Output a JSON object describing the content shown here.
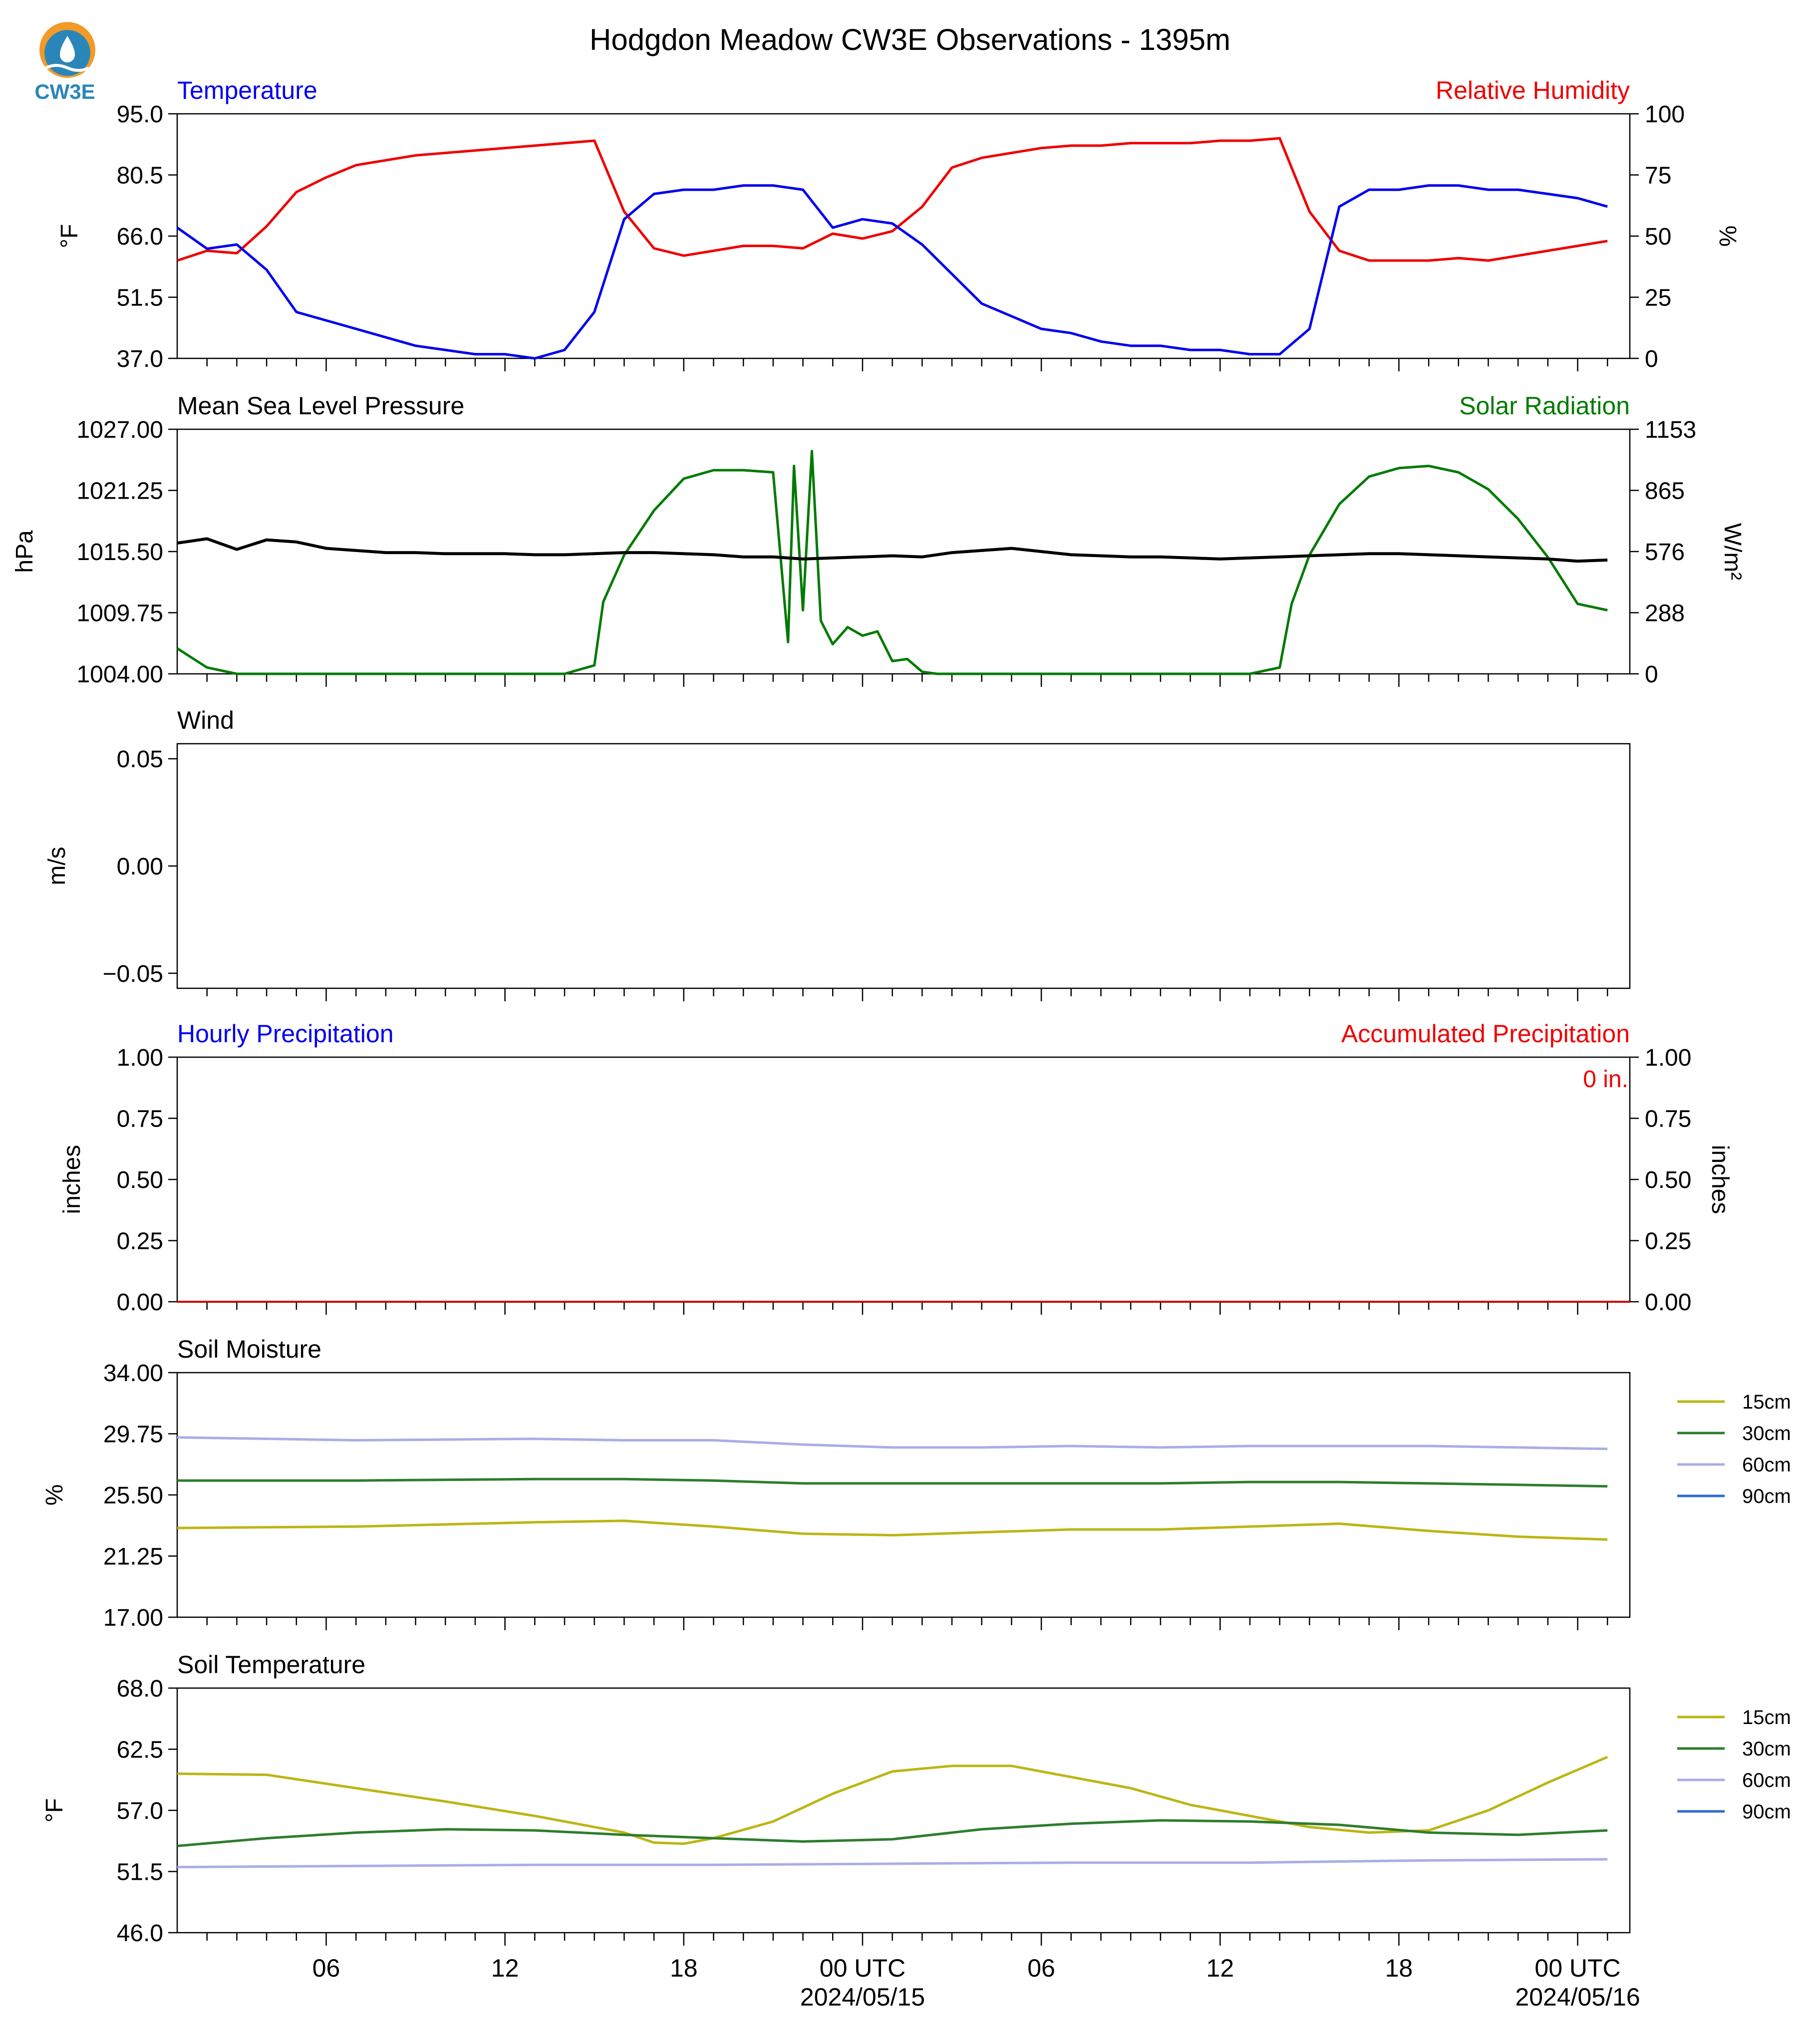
{
  "title": "Hodgdon Meadow CW3E Observations - 1395m",
  "logo": {
    "text": "CW3E",
    "icon": "cw3e-logo-icon"
  },
  "colors": {
    "blue": "#0000ee",
    "red": "#ee0000",
    "green": "#007a00",
    "black": "#000000",
    "s15": "#bdb514",
    "s30": "#2e7d2e",
    "s60": "#a9aee6",
    "s90": "#2d6bd6"
  },
  "x_axis": {
    "tick_labels": [
      "06",
      "12",
      "18",
      "00 UTC",
      "06",
      "12",
      "18",
      "00 UTC"
    ],
    "date_labels": [
      "2024/05/15",
      "2024/05/16"
    ]
  },
  "panels": {
    "temp": {
      "left_title": "Temperature",
      "right_title": "Relative Humidity",
      "ylabel_left": "°F",
      "ylabel_right": "%",
      "yticks_left": [
        "95.0",
        "80.5",
        "66.0",
        "51.5",
        "37.0"
      ],
      "yticks_right": [
        "100",
        "75",
        "50",
        "25",
        "0"
      ]
    },
    "pres": {
      "left_title": "Mean Sea Level Pressure",
      "right_title": "Solar Radiation",
      "ylabel_left": "hPa",
      "ylabel_right": "W/m²",
      "yticks_left": [
        "1027.00",
        "1021.25",
        "1015.50",
        "1009.75",
        "1004.00"
      ],
      "yticks_right": [
        "1153",
        "865",
        "576",
        "288",
        "0"
      ]
    },
    "wind": {
      "left_title": "Wind",
      "ylabel_left": "m/s",
      "yticks_left": [
        "0.05",
        "0.00",
        "−0.05"
      ]
    },
    "precip": {
      "left_title": "Hourly Precipitation",
      "right_title": "Accumulated Precipitation",
      "ylabel_left": "inches",
      "ylabel_right": "inches",
      "yticks_left": [
        "1.00",
        "0.75",
        "0.50",
        "0.25",
        "0.00"
      ],
      "yticks_right": [
        "1.00",
        "0.75",
        "0.50",
        "0.25",
        "0.00"
      ],
      "accum_label": "0 in."
    },
    "soilm": {
      "left_title": "Soil Moisture",
      "ylabel_left": "%",
      "yticks_left": [
        "34.00",
        "29.75",
        "25.50",
        "21.25",
        "17.00"
      ],
      "legend": [
        "15cm",
        "30cm",
        "60cm",
        "90cm"
      ]
    },
    "soilt": {
      "left_title": "Soil Temperature",
      "ylabel_left": "°F",
      "yticks_left": [
        "68.0",
        "62.5",
        "57.0",
        "51.5",
        "46.0"
      ],
      "legend": [
        "15cm",
        "30cm",
        "60cm",
        "90cm"
      ]
    }
  },
  "chart_data": [
    {
      "type": "line",
      "panel": "temp",
      "title": "Temperature / Relative Humidity",
      "x_unit": "hours since 2024/05/14 01 UTC",
      "ylim_left": [
        37,
        95
      ],
      "ylim_right": [
        0,
        100
      ],
      "series": [
        {
          "name": "Temperature",
          "axis": "left",
          "color": "#0000ee",
          "x": [
            0,
            1,
            2,
            3,
            4,
            5,
            6,
            7,
            8,
            9,
            10,
            11,
            12,
            13,
            14,
            15,
            16,
            17,
            18,
            19,
            20,
            21,
            22,
            23,
            24,
            25,
            26,
            27,
            28,
            29,
            30,
            31,
            32,
            33,
            34,
            35,
            36,
            37,
            38,
            39,
            40,
            41,
            42,
            43,
            44,
            45,
            46,
            47,
            48
          ],
          "y": [
            68,
            63,
            64,
            58,
            48,
            46,
            44,
            42,
            40,
            39,
            38,
            38,
            37,
            39,
            48,
            70,
            76,
            77,
            77,
            78,
            78,
            77,
            68,
            70,
            69,
            64,
            57,
            50,
            47,
            44,
            43,
            41,
            40,
            40,
            39,
            39,
            38,
            38,
            44,
            73,
            77,
            77,
            78,
            78,
            77,
            77,
            76,
            75,
            73
          ]
        },
        {
          "name": "Relative Humidity",
          "axis": "right",
          "color": "#ee0000",
          "x": [
            0,
            1,
            2,
            3,
            4,
            5,
            6,
            7,
            8,
            9,
            10,
            11,
            12,
            13,
            14,
            15,
            16,
            17,
            18,
            19,
            20,
            21,
            22,
            23,
            24,
            25,
            26,
            27,
            28,
            29,
            30,
            31,
            32,
            33,
            34,
            35,
            36,
            37,
            38,
            39,
            40,
            41,
            42,
            43,
            44,
            45,
            46,
            47,
            48
          ],
          "y": [
            40,
            44,
            43,
            54,
            68,
            74,
            79,
            81,
            83,
            84,
            85,
            86,
            87,
            88,
            89,
            60,
            45,
            42,
            44,
            46,
            46,
            45,
            51,
            49,
            52,
            62,
            78,
            82,
            84,
            86,
            87,
            87,
            88,
            88,
            88,
            89,
            89,
            90,
            60,
            44,
            40,
            40,
            40,
            41,
            40,
            42,
            44,
            46,
            48
          ]
        }
      ]
    },
    {
      "type": "line",
      "panel": "pres",
      "title": "Mean Sea Level Pressure / Solar Radiation",
      "ylim_left": [
        1004,
        1027
      ],
      "ylim_right": [
        0,
        1153
      ],
      "series": [
        {
          "name": "Mean Sea Level Pressure",
          "axis": "left",
          "color": "#000000",
          "x": [
            0,
            1,
            2,
            3,
            4,
            5,
            6,
            7,
            8,
            9,
            10,
            11,
            12,
            13,
            14,
            15,
            16,
            17,
            18,
            19,
            20,
            21,
            22,
            23,
            24,
            25,
            26,
            27,
            28,
            29,
            30,
            31,
            32,
            33,
            34,
            35,
            36,
            37,
            38,
            39,
            40,
            41,
            42,
            43,
            44,
            45,
            46,
            47,
            48
          ],
          "y": [
            1016.3,
            1016.7,
            1015.7,
            1016.6,
            1016.4,
            1015.8,
            1015.6,
            1015.4,
            1015.4,
            1015.3,
            1015.3,
            1015.3,
            1015.2,
            1015.2,
            1015.3,
            1015.4,
            1015.4,
            1015.3,
            1015.2,
            1015.0,
            1015.0,
            1014.8,
            1014.9,
            1015.0,
            1015.1,
            1015.0,
            1015.4,
            1015.6,
            1015.8,
            1015.5,
            1015.2,
            1015.1,
            1015.0,
            1015.0,
            1014.9,
            1014.8,
            1014.9,
            1015.0,
            1015.1,
            1015.2,
            1015.3,
            1015.3,
            1015.2,
            1015.1,
            1015.0,
            1014.9,
            1014.8,
            1014.6,
            1014.7
          ]
        },
        {
          "name": "Solar Radiation",
          "axis": "right",
          "color": "#007a00",
          "x": [
            0,
            1,
            2,
            13,
            14,
            14.3,
            15,
            16,
            17,
            18,
            19,
            20,
            20.5,
            20.7,
            21,
            21.3,
            21.6,
            22,
            22.5,
            23,
            23.5,
            24,
            24.5,
            25,
            25.5,
            26,
            27,
            36,
            37,
            37.4,
            38,
            39,
            40,
            41,
            42,
            43,
            44,
            45,
            46,
            47,
            48
          ],
          "y": [
            120,
            30,
            0,
            0,
            40,
            340,
            560,
            770,
            920,
            960,
            960,
            950,
            150,
            980,
            300,
            1050,
            250,
            140,
            220,
            180,
            200,
            60,
            70,
            10,
            0,
            0,
            0,
            0,
            30,
            330,
            560,
            800,
            930,
            970,
            980,
            950,
            870,
            730,
            550,
            330,
            300
          ]
        }
      ]
    },
    {
      "type": "line",
      "panel": "wind",
      "title": "Wind",
      "ylim": [
        -0.057,
        0.057
      ],
      "series": []
    },
    {
      "type": "bar",
      "panel": "precip",
      "title": "Hourly Precipitation / Accumulated Precipitation",
      "ylim": [
        0,
        1
      ],
      "accumulated_total": 0,
      "series": [
        {
          "name": "Hourly Precipitation",
          "values": [
            0
          ]
        },
        {
          "name": "Accumulated Precipitation",
          "values": [
            0
          ]
        }
      ]
    },
    {
      "type": "line",
      "panel": "soilm",
      "title": "Soil Moisture",
      "ylim": [
        17,
        34
      ],
      "series": [
        {
          "name": "15cm",
          "color": "#bdb514",
          "x": [
            0,
            6,
            12,
            15,
            18,
            21,
            24,
            27,
            30,
            33,
            36,
            39,
            42,
            45,
            48
          ],
          "y": [
            23.2,
            23.3,
            23.6,
            23.7,
            23.3,
            22.8,
            22.7,
            22.9,
            23.1,
            23.1,
            23.3,
            23.5,
            23.0,
            22.6,
            22.4
          ]
        },
        {
          "name": "30cm",
          "color": "#2e7d2e",
          "x": [
            0,
            6,
            12,
            15,
            18,
            21,
            24,
            27,
            30,
            33,
            36,
            39,
            42,
            45,
            48
          ],
          "y": [
            26.5,
            26.5,
            26.6,
            26.6,
            26.5,
            26.3,
            26.3,
            26.3,
            26.3,
            26.3,
            26.4,
            26.4,
            26.3,
            26.2,
            26.1
          ]
        },
        {
          "name": "60cm",
          "color": "#a9aee6",
          "x": [
            0,
            6,
            12,
            15,
            18,
            21,
            24,
            27,
            30,
            33,
            36,
            39,
            42,
            45,
            48
          ],
          "y": [
            29.5,
            29.3,
            29.4,
            29.3,
            29.3,
            29.0,
            28.8,
            28.8,
            28.9,
            28.8,
            28.9,
            28.9,
            28.9,
            28.8,
            28.7
          ]
        },
        {
          "name": "90cm",
          "color": "#2d6bd6",
          "x": [],
          "y": []
        }
      ]
    },
    {
      "type": "line",
      "panel": "soilt",
      "title": "Soil Temperature",
      "ylim": [
        46,
        68
      ],
      "series": [
        {
          "name": "15cm",
          "color": "#bdb514",
          "x": [
            0,
            3,
            6,
            9,
            12,
            15,
            16,
            17,
            18,
            20,
            22,
            24,
            26,
            28,
            30,
            32,
            34,
            36,
            38,
            40,
            42,
            44,
            46,
            48
          ],
          "y": [
            60.3,
            60.2,
            59.0,
            57.8,
            56.5,
            55.0,
            54.1,
            54.0,
            54.5,
            56.0,
            58.5,
            60.5,
            61.0,
            61.0,
            60.0,
            59.0,
            57.5,
            56.5,
            55.5,
            55.0,
            55.2,
            57.0,
            59.5,
            61.8
          ]
        },
        {
          "name": "30cm",
          "color": "#2e7d2e",
          "x": [
            0,
            3,
            6,
            9,
            12,
            15,
            18,
            21,
            24,
            27,
            30,
            33,
            36,
            39,
            42,
            45,
            48
          ],
          "y": [
            53.8,
            54.5,
            55.0,
            55.3,
            55.2,
            54.8,
            54.5,
            54.2,
            54.4,
            55.3,
            55.8,
            56.1,
            56.0,
            55.7,
            55.0,
            54.8,
            55.2
          ]
        },
        {
          "name": "60cm",
          "color": "#a9aee6",
          "x": [
            0,
            6,
            12,
            18,
            24,
            30,
            36,
            42,
            48
          ],
          "y": [
            51.9,
            52.0,
            52.1,
            52.1,
            52.2,
            52.3,
            52.3,
            52.5,
            52.6
          ]
        },
        {
          "name": "90cm",
          "color": "#2d6bd6",
          "x": [],
          "y": []
        }
      ]
    }
  ]
}
